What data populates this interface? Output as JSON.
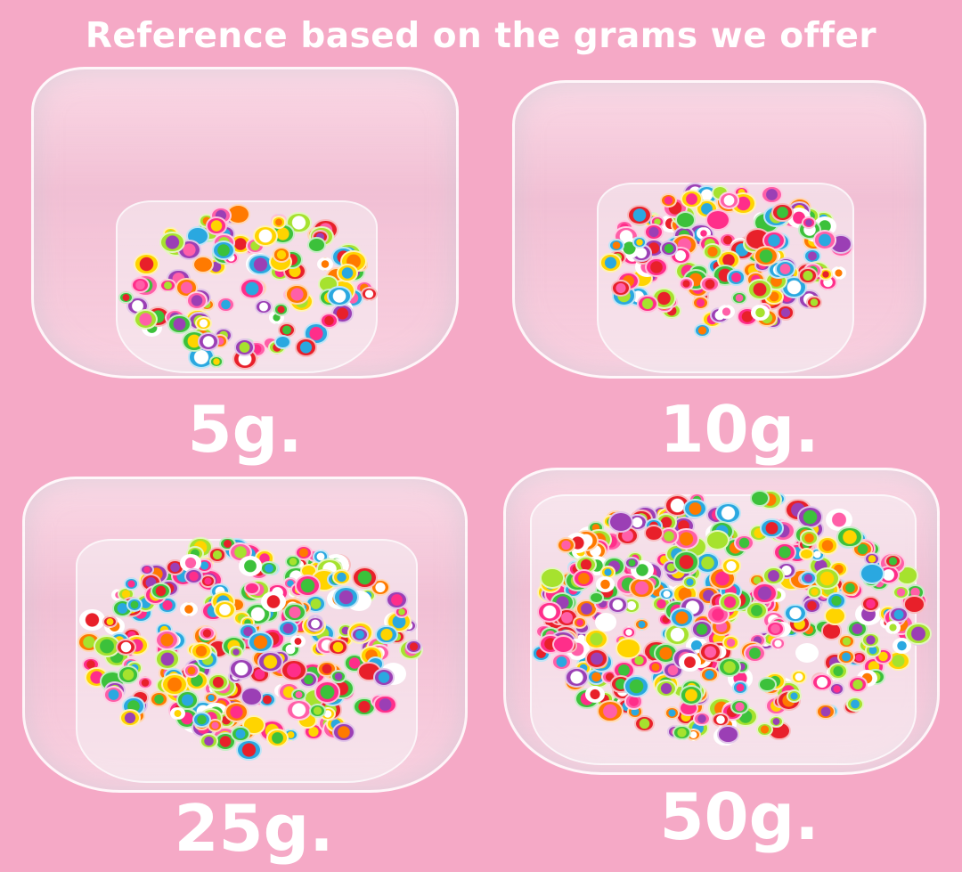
{
  "title": "Reference based on the grams we offer",
  "bowls": [
    {
      "label": "5g."
    },
    {
      "label": "10g."
    },
    {
      "label": "25g."
    },
    {
      "label": "50g."
    }
  ],
  "colors": {
    "background": "#f5a9c6",
    "text": "#ffffff",
    "fruit_palette": [
      "#ff2e8a",
      "#ffd400",
      "#ff7a00",
      "#3cc13b",
      "#e8202a",
      "#9b3fb5",
      "#ffffff",
      "#ff5fa8",
      "#2aa8e0",
      "#a6e22e"
    ]
  }
}
